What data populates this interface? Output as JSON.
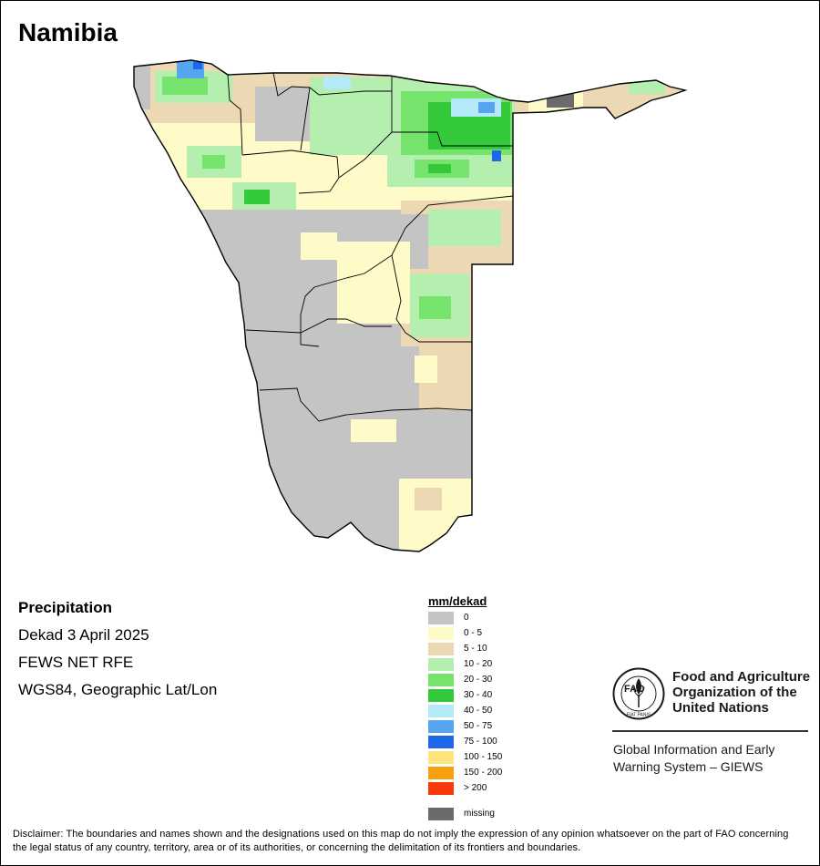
{
  "map": {
    "title": "Namibia",
    "info": {
      "variable": "Precipitation",
      "period": "Dekad 3 April 2025",
      "source": "FEWS NET RFE",
      "projection": "WGS84, Geographic Lat/Lon"
    }
  },
  "legend": {
    "title": "mm/dekad",
    "classes": [
      {
        "label": "0",
        "color": "#c4c4c4"
      },
      {
        "label": "0 - 5",
        "color": "#fefbc9"
      },
      {
        "label": "5 - 10",
        "color": "#ecd9b4"
      },
      {
        "label": "10 - 20",
        "color": "#b5efaf"
      },
      {
        "label": "20 - 30",
        "color": "#76e46c"
      },
      {
        "label": "30 - 40",
        "color": "#33c93a"
      },
      {
        "label": "40 - 50",
        "color": "#b4e9f7"
      },
      {
        "label": "50 - 75",
        "color": "#56a6ef"
      },
      {
        "label": "75 - 100",
        "color": "#1e67e8"
      },
      {
        "label": "100 - 150",
        "color": "#fde37e"
      },
      {
        "label": "150 - 200",
        "color": "#f8a00d"
      },
      {
        "label": "> 200",
        "color": "#f83a0b"
      }
    ],
    "missing": {
      "label": "missing",
      "color": "#6b6b6b"
    }
  },
  "organization": {
    "logo_text": "FAO",
    "logo_motto": "FIAT PANIS",
    "name": "Food and Agriculture Organization of the United Nations",
    "system": "Global Information and Early Warning System – GIEWS"
  },
  "disclaimer": "Disclaimer: The boundaries and names shown and the designations used on this map do not imply the expression of any opinion whatsoever on the part of FAO concerning the legal status of any country, territory, area or of its authorities, or concerning the delimitation of its frontiers and boundaries."
}
